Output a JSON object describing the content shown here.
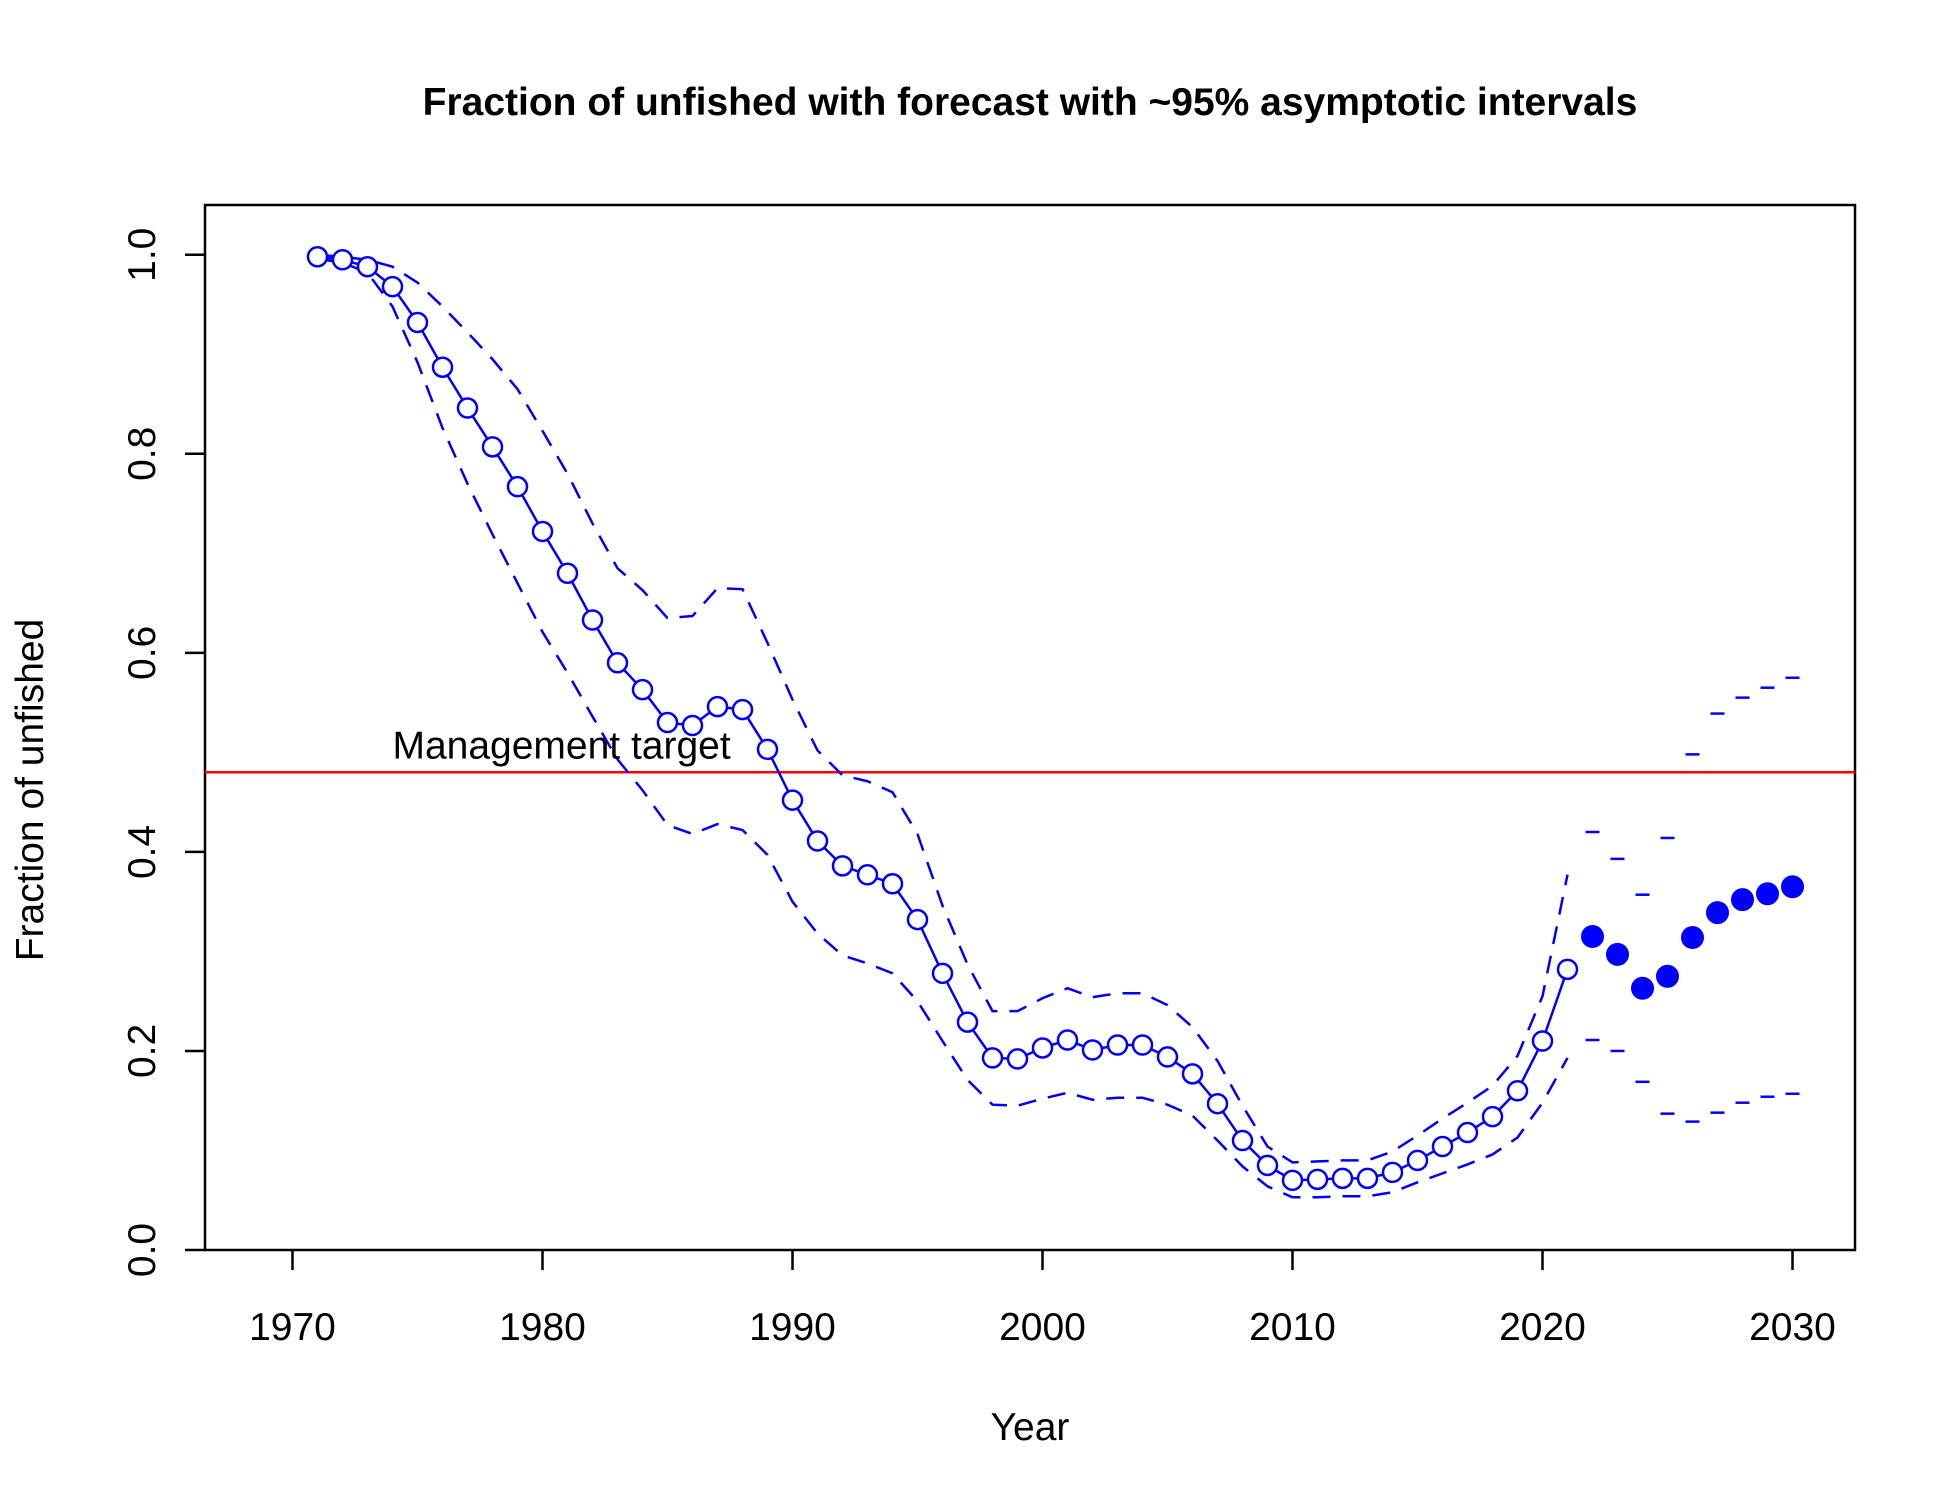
{
  "chart_data": {
    "type": "line",
    "title": "Fraction of unfished with forecast with ~95% asymptotic intervals",
    "xlabel": "Year",
    "ylabel": "Fraction of unfished",
    "xlim": [
      1966.5,
      2032.5
    ],
    "ylim": [
      0.0,
      1.05
    ],
    "x_ticks": [
      1970,
      1980,
      1990,
      2000,
      2010,
      2020,
      2030
    ],
    "x_tick_labels": [
      "1970",
      "1980",
      "1990",
      "2000",
      "2010",
      "2020",
      "2030"
    ],
    "y_ticks": [
      0.0,
      0.2,
      0.4,
      0.6,
      0.8,
      1.0
    ],
    "y_tick_labels": [
      "0.0",
      "0.2",
      "0.4",
      "0.6",
      "0.8",
      "1.0"
    ],
    "grid": false,
    "colors": {
      "series": "#0000ff",
      "reference": "#ff0000",
      "axis": "#000000"
    },
    "reference_line": {
      "y": 0.48,
      "label": "Management target",
      "label_x": 1974
    },
    "series": [
      {
        "style": "line-open-circles",
        "x": [
          1971,
          1972,
          1973,
          1974,
          1975,
          1976,
          1977,
          1978,
          1979,
          1980,
          1981,
          1982,
          1983,
          1984,
          1985,
          1986,
          1987,
          1988,
          1989,
          1990,
          1991,
          1992,
          1993,
          1994,
          1995,
          1996,
          1997,
          1998,
          1999,
          2000,
          2001,
          2002,
          2003,
          2004,
          2005,
          2006,
          2007,
          2008,
          2009,
          2010,
          2011,
          2012,
          2013,
          2014,
          2015,
          2016,
          2017,
          2018,
          2019,
          2020,
          2021
        ],
        "values": [
          0.998,
          0.995,
          0.988,
          0.968,
          0.932,
          0.887,
          0.846,
          0.807,
          0.767,
          0.722,
          0.68,
          0.633,
          0.59,
          0.563,
          0.53,
          0.527,
          0.546,
          0.543,
          0.503,
          0.452,
          0.411,
          0.386,
          0.377,
          0.368,
          0.332,
          0.278,
          0.229,
          0.193,
          0.192,
          0.203,
          0.211,
          0.201,
          0.206,
          0.206,
          0.194,
          0.177,
          0.147,
          0.11,
          0.085,
          0.07,
          0.071,
          0.072,
          0.072,
          0.078,
          0.09,
          0.104,
          0.118,
          0.134,
          0.16,
          0.21,
          0.282
        ]
      },
      {
        "style": "dashed-interval-upper",
        "x": [
          1971,
          1972,
          1973,
          1974,
          1975,
          1976,
          1977,
          1978,
          1979,
          1980,
          1981,
          1982,
          1983,
          1984,
          1985,
          1986,
          1987,
          1988,
          1989,
          1990,
          1991,
          1992,
          1993,
          1994,
          1995,
          1996,
          1997,
          1998,
          1999,
          2000,
          2001,
          2002,
          2003,
          2004,
          2005,
          2006,
          2007,
          2008,
          2009,
          2010,
          2011,
          2012,
          2013,
          2014,
          2015,
          2016,
          2017,
          2018,
          2019,
          2020,
          2021
        ],
        "values": [
          1.0,
          0.998,
          0.995,
          0.988,
          0.972,
          0.948,
          0.922,
          0.895,
          0.865,
          0.823,
          0.78,
          0.73,
          0.685,
          0.663,
          0.635,
          0.637,
          0.665,
          0.664,
          0.61,
          0.553,
          0.502,
          0.477,
          0.471,
          0.46,
          0.418,
          0.346,
          0.287,
          0.24,
          0.24,
          0.253,
          0.263,
          0.254,
          0.258,
          0.258,
          0.246,
          0.224,
          0.19,
          0.145,
          0.104,
          0.088,
          0.089,
          0.09,
          0.09,
          0.099,
          0.115,
          0.132,
          0.148,
          0.165,
          0.195,
          0.255,
          0.377
        ]
      },
      {
        "style": "dashed-interval-lower",
        "x": [
          1971,
          1972,
          1973,
          1974,
          1975,
          1976,
          1977,
          1978,
          1979,
          1980,
          1981,
          1982,
          1983,
          1984,
          1985,
          1986,
          1987,
          1988,
          1989,
          1990,
          1991,
          1992,
          1993,
          1994,
          1995,
          1996,
          1997,
          1998,
          1999,
          2000,
          2001,
          2002,
          2003,
          2004,
          2005,
          2006,
          2007,
          2008,
          2009,
          2010,
          2011,
          2012,
          2013,
          2014,
          2015,
          2016,
          2017,
          2018,
          2019,
          2020,
          2021
        ],
        "values": [
          0.996,
          0.992,
          0.982,
          0.948,
          0.892,
          0.826,
          0.77,
          0.719,
          0.67,
          0.621,
          0.58,
          0.536,
          0.493,
          0.462,
          0.427,
          0.418,
          0.428,
          0.422,
          0.397,
          0.35,
          0.318,
          0.296,
          0.288,
          0.278,
          0.25,
          0.21,
          0.171,
          0.146,
          0.145,
          0.152,
          0.158,
          0.151,
          0.153,
          0.153,
          0.146,
          0.135,
          0.11,
          0.084,
          0.064,
          0.053,
          0.053,
          0.054,
          0.054,
          0.058,
          0.068,
          0.077,
          0.086,
          0.096,
          0.113,
          0.148,
          0.193
        ]
      },
      {
        "style": "filled-points-forecast",
        "x": [
          2022,
          2023,
          2024,
          2025,
          2026,
          2027,
          2028,
          2029,
          2030
        ],
        "values": [
          0.315,
          0.297,
          0.263,
          0.275,
          0.314,
          0.339,
          0.352,
          0.358,
          0.365
        ]
      },
      {
        "style": "dash-marks-forecast-upper",
        "x": [
          2022,
          2023,
          2024,
          2025,
          2026,
          2027,
          2028,
          2029,
          2030
        ],
        "values": [
          0.42,
          0.393,
          0.357,
          0.414,
          0.498,
          0.539,
          0.555,
          0.565,
          0.575
        ]
      },
      {
        "style": "dash-marks-forecast-lower",
        "x": [
          2022,
          2023,
          2024,
          2025,
          2026,
          2027,
          2028,
          2029,
          2030
        ],
        "values": [
          0.211,
          0.2,
          0.169,
          0.137,
          0.129,
          0.138,
          0.148,
          0.154,
          0.157
        ]
      }
    ]
  }
}
